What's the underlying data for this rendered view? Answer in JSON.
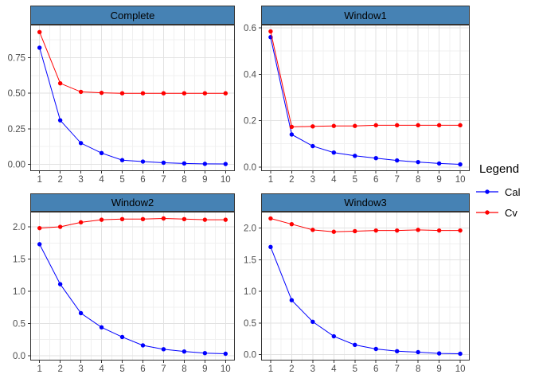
{
  "figure": {
    "background": "#FFFFFF",
    "colors": {
      "strip_fill": "#4682B4",
      "strip_border": "#333333",
      "strip_text": "#000000",
      "panel_bg": "#FFFFFF",
      "panel_border": "#333333",
      "grid_major": "#E2E2E2",
      "grid_minor": "#F0F0F0",
      "tick": "#333333",
      "tick_label": "#4D4D4D"
    }
  },
  "legend": {
    "title": "Legend",
    "entries": [
      {
        "label": "Cal",
        "color": "#0000FF"
      },
      {
        "label": "Cv",
        "color": "#FF0000"
      }
    ]
  },
  "chart_data": {
    "type": "line",
    "layout": "2x2-facets",
    "legend_position": "right",
    "grid": "major-and-minor",
    "x": [
      1,
      2,
      3,
      4,
      5,
      6,
      7,
      8,
      9,
      10
    ],
    "x_range": [
      0.55,
      10.45
    ],
    "x_tick_labels": [
      "1",
      "2",
      "3",
      "4",
      "5",
      "6",
      "7",
      "8",
      "9",
      "10"
    ],
    "facets": [
      {
        "title": "Complete",
        "y_range": [
          -0.047,
          0.982
        ],
        "y_ticks": [
          0,
          0.25,
          0.5,
          0.75
        ],
        "y_tick_labels": [
          "0.00",
          "0.25",
          "0.50",
          "0.75"
        ],
        "series": [
          {
            "name": "Cal",
            "color": "#0000FF",
            "values": [
              0.82,
              0.31,
              0.15,
              0.08,
              0.03,
              0.02,
              0.012,
              0.007,
              0.004,
              0.003
            ]
          },
          {
            "name": "Cv",
            "color": "#FF0000",
            "values": [
              0.93,
              0.57,
              0.51,
              0.503,
              0.5,
              0.5,
              0.5,
              0.5,
              0.5,
              0.5
            ]
          }
        ]
      },
      {
        "title": "Window1",
        "y_range": [
          -0.018,
          0.614
        ],
        "y_ticks": [
          0,
          0.2,
          0.4,
          0.6
        ],
        "y_tick_labels": [
          "0.0",
          "0.2",
          "0.4",
          "0.6"
        ],
        "series": [
          {
            "name": "Cal",
            "color": "#0000FF",
            "values": [
              0.56,
              0.14,
              0.09,
              0.062,
              0.048,
              0.038,
              0.028,
              0.021,
              0.015,
              0.011
            ]
          },
          {
            "name": "Cv",
            "color": "#FF0000",
            "values": [
              0.585,
              0.173,
              0.175,
              0.177,
              0.177,
              0.18,
              0.18,
              0.18,
              0.18,
              0.18
            ]
          }
        ]
      },
      {
        "title": "Window2",
        "y_range": [
          -0.075,
          2.235
        ],
        "y_ticks": [
          0,
          0.5,
          1,
          1.5,
          2
        ],
        "y_tick_labels": [
          "0.0",
          "0.5",
          "1.0",
          "1.5",
          "2.0"
        ],
        "series": [
          {
            "name": "Cal",
            "color": "#0000FF",
            "values": [
              1.73,
              1.11,
              0.66,
              0.44,
              0.29,
              0.16,
              0.1,
              0.065,
              0.04,
              0.03
            ]
          },
          {
            "name": "Cv",
            "color": "#FF0000",
            "values": [
              1.98,
              2.0,
              2.07,
              2.11,
              2.12,
              2.12,
              2.13,
              2.12,
              2.11,
              2.11
            ]
          }
        ]
      },
      {
        "title": "Window3",
        "y_range": [
          -0.092,
          2.257
        ],
        "y_ticks": [
          0,
          0.5,
          1,
          1.5,
          2
        ],
        "y_tick_labels": [
          "0.0",
          "0.5",
          "1.0",
          "1.5",
          "2.0"
        ],
        "series": [
          {
            "name": "Cal",
            "color": "#0000FF",
            "values": [
              1.7,
              0.86,
              0.52,
              0.29,
              0.155,
              0.09,
              0.055,
              0.04,
              0.02,
              0.015
            ]
          },
          {
            "name": "Cv",
            "color": "#FF0000",
            "values": [
              2.15,
              2.06,
              1.97,
              1.94,
              1.95,
              1.96,
              1.96,
              1.97,
              1.96,
              1.96
            ]
          }
        ]
      }
    ]
  }
}
